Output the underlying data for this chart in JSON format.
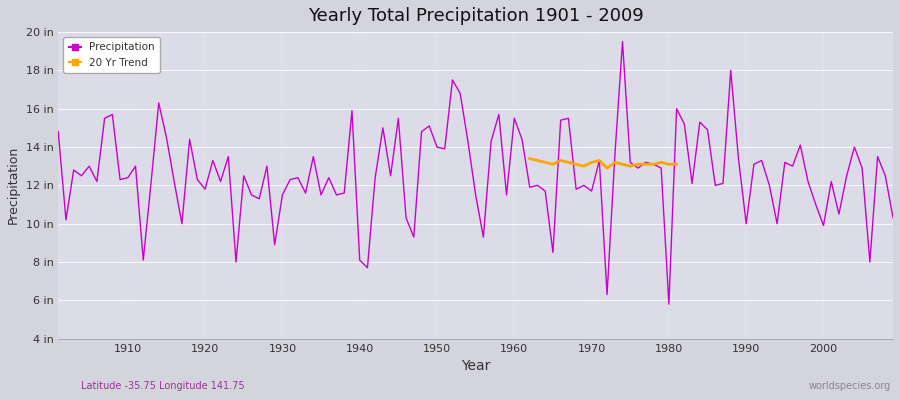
{
  "title": "Yearly Total Precipitation 1901 - 2009",
  "xlabel": "Year",
  "ylabel": "Precipitation",
  "bottom_left_label": "Latitude -35.75 Longitude 141.75",
  "bottom_right_label": "worldspecies.org",
  "ylim": [
    4,
    20
  ],
  "yticks": [
    4,
    6,
    8,
    10,
    12,
    14,
    16,
    18,
    20
  ],
  "ytick_labels": [
    "4 in",
    "6 in",
    "8 in",
    "10 in",
    "12 in",
    "14 in",
    "16 in",
    "18 in",
    "20 in"
  ],
  "precipitation_color": "#CC00CC",
  "trend_color": "#FFA500",
  "fig_bg_color": "#D4D4DC",
  "plot_bg_color": "#DCDCE8",
  "years": [
    1901,
    1902,
    1903,
    1904,
    1905,
    1906,
    1907,
    1908,
    1909,
    1910,
    1911,
    1912,
    1913,
    1914,
    1915,
    1916,
    1917,
    1918,
    1919,
    1920,
    1921,
    1922,
    1923,
    1924,
    1925,
    1926,
    1927,
    1928,
    1929,
    1930,
    1931,
    1932,
    1933,
    1934,
    1935,
    1936,
    1937,
    1938,
    1939,
    1940,
    1941,
    1942,
    1943,
    1944,
    1945,
    1946,
    1947,
    1948,
    1949,
    1950,
    1951,
    1952,
    1953,
    1954,
    1955,
    1956,
    1957,
    1958,
    1959,
    1960,
    1961,
    1962,
    1963,
    1964,
    1965,
    1966,
    1967,
    1968,
    1969,
    1970,
    1971,
    1972,
    1973,
    1974,
    1975,
    1976,
    1977,
    1978,
    1979,
    1980,
    1981,
    1982,
    1983,
    1984,
    1985,
    1986,
    1987,
    1988,
    1989,
    1990,
    1991,
    1992,
    1993,
    1994,
    1995,
    1996,
    1997,
    1998,
    1999,
    2000,
    2001,
    2002,
    2003,
    2004,
    2005,
    2006,
    2007,
    2008,
    2009
  ],
  "precip": [
    14.8,
    10.2,
    12.8,
    12.5,
    13.0,
    12.2,
    15.5,
    15.7,
    12.3,
    12.4,
    13.0,
    8.1,
    12.1,
    16.3,
    14.5,
    12.2,
    10.0,
    14.4,
    12.3,
    11.8,
    13.3,
    12.2,
    13.5,
    8.0,
    12.5,
    11.5,
    11.3,
    13.0,
    8.9,
    11.5,
    12.3,
    12.4,
    11.6,
    13.5,
    11.5,
    12.4,
    11.5,
    11.6,
    15.9,
    8.1,
    7.7,
    12.4,
    15.0,
    12.5,
    15.5,
    10.3,
    9.3,
    14.8,
    15.1,
    14.0,
    13.9,
    17.5,
    16.8,
    14.3,
    11.5,
    9.3,
    14.3,
    15.7,
    11.5,
    15.5,
    14.4,
    11.9,
    12.0,
    11.7,
    8.5,
    15.4,
    15.5,
    11.8,
    12.0,
    11.7,
    13.3,
    6.3,
    13.5,
    19.5,
    13.2,
    12.9,
    13.2,
    13.1,
    12.9,
    5.8,
    16.0,
    15.2,
    12.1,
    15.3,
    14.9,
    12.0,
    12.1,
    18.0,
    13.4,
    10.0,
    13.1,
    13.3,
    12.0,
    10.0,
    13.2,
    13.0,
    14.1,
    12.2,
    11.0,
    9.9,
    12.2,
    10.5,
    12.5,
    14.0,
    12.9,
    8.0,
    13.5,
    12.5,
    10.3
  ],
  "trend_years": [
    1962,
    1963,
    1964,
    1965,
    1966,
    1967,
    1968,
    1969,
    1970,
    1971,
    1972,
    1973,
    1974,
    1975,
    1976,
    1977,
    1978,
    1979,
    1980,
    1981
  ],
  "trend_values": [
    13.4,
    13.3,
    13.2,
    13.1,
    13.3,
    13.2,
    13.1,
    13.0,
    13.2,
    13.3,
    12.9,
    13.2,
    13.1,
    13.0,
    13.1,
    13.1,
    13.1,
    13.2,
    13.1,
    13.1
  ],
  "legend_entries": [
    "Precipitation",
    "20 Yr Trend"
  ]
}
